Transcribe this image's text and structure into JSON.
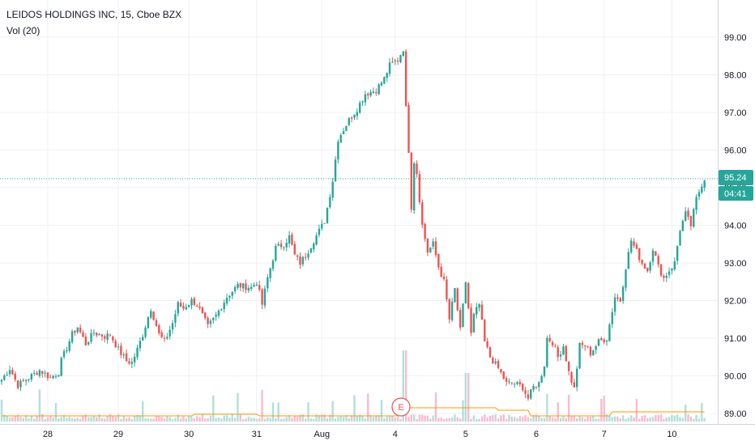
{
  "header": {
    "symbol_line": "LEIDOS HOLDINGS INC, 15, Cboe BZX",
    "volume_label": "Vol (20)"
  },
  "price_tag": {
    "value": "95.24",
    "countdown": "04:41"
  },
  "earnings_marker": "E",
  "colors": {
    "up": "#26a69a",
    "down": "#ef5350",
    "up_volume": "#b2dfdb",
    "down_volume": "#f8bbd0",
    "volume_ma": "#ff9800",
    "grid": "#eef0f3",
    "axis_text": "#131722",
    "price_line": "#26a69a"
  },
  "chart_data": {
    "type": "candlestick",
    "title": "LEIDOS HOLDINGS INC, 15, Cboe BZX",
    "interval": "15",
    "exchange": "Cboe BZX",
    "last_price": 95.24,
    "y_axis": {
      "position": "right",
      "range": [
        88.9,
        99.9
      ],
      "ticks": [
        "99.00",
        "98.00",
        "97.00",
        "96.00",
        "95.00",
        "94.00",
        "93.00",
        "92.00",
        "91.00",
        "90.00",
        "89.00"
      ]
    },
    "x_axis": {
      "ticks": [
        "28",
        "29",
        "30",
        "31",
        "Aug",
        "4",
        "5",
        "6",
        "7",
        "10"
      ]
    },
    "grid": true,
    "volume_indicator": "Vol (20)",
    "price_anchors": [
      [
        0,
        89.9
      ],
      [
        3,
        90.2
      ],
      [
        6,
        89.75
      ],
      [
        10,
        89.95
      ],
      [
        14,
        90.15
      ],
      [
        18,
        89.95
      ],
      [
        21,
        90.1
      ],
      [
        22,
        90.4
      ],
      [
        26,
        91.1
      ],
      [
        28,
        91.3
      ],
      [
        31,
        90.85
      ],
      [
        34,
        91.15
      ],
      [
        38,
        91.05
      ],
      [
        40,
        91.1
      ],
      [
        43,
        90.7
      ],
      [
        46,
        90.4
      ],
      [
        48,
        90.35
      ],
      [
        50,
        90.7
      ],
      [
        52,
        91.1
      ],
      [
        55,
        91.8
      ],
      [
        58,
        91.1
      ],
      [
        60,
        90.9
      ],
      [
        63,
        91.4
      ],
      [
        65,
        91.9
      ],
      [
        67,
        91.8
      ],
      [
        70,
        92.0
      ],
      [
        72,
        91.9
      ],
      [
        76,
        91.3
      ],
      [
        79,
        91.6
      ],
      [
        83,
        92.1
      ],
      [
        87,
        92.4
      ],
      [
        92,
        92.35
      ],
      [
        94,
        92.5
      ],
      [
        96,
        91.9
      ],
      [
        98,
        92.6
      ],
      [
        101,
        93.4
      ],
      [
        104,
        93.5
      ],
      [
        106,
        93.7
      ],
      [
        108,
        93.2
      ],
      [
        110,
        93.0
      ],
      [
        112,
        93.2
      ],
      [
        115,
        93.6
      ],
      [
        119,
        94.1
      ],
      [
        122,
        95.2
      ],
      [
        124,
        96.3
      ],
      [
        128,
        96.8
      ],
      [
        131,
        97.1
      ],
      [
        134,
        97.5
      ],
      [
        138,
        97.6
      ],
      [
        141,
        97.9
      ],
      [
        143,
        98.25
      ],
      [
        146,
        98.4
      ],
      [
        148,
        98.7
      ],
      [
        149,
        97.1
      ],
      [
        150,
        96.0
      ],
      [
        151,
        94.5
      ],
      [
        152,
        95.7
      ],
      [
        153,
        95.4
      ],
      [
        155,
        94.0
      ],
      [
        157,
        93.3
      ],
      [
        159,
        93.5
      ],
      [
        161,
        92.9
      ],
      [
        163,
        92.5
      ],
      [
        165,
        91.5
      ],
      [
        167,
        92.3
      ],
      [
        169,
        91.2
      ],
      [
        171,
        92.5
      ],
      [
        173,
        91.1
      ],
      [
        174,
        91.6
      ],
      [
        176,
        91.9
      ],
      [
        178,
        90.9
      ],
      [
        180,
        90.5
      ],
      [
        183,
        90.2
      ],
      [
        186,
        89.8
      ],
      [
        189,
        89.8
      ],
      [
        192,
        89.7
      ],
      [
        194,
        89.4
      ],
      [
        196,
        89.7
      ],
      [
        198,
        89.8
      ],
      [
        200,
        90.3
      ],
      [
        201,
        91.0
      ],
      [
        203,
        90.9
      ],
      [
        205,
        90.5
      ],
      [
        207,
        90.8
      ],
      [
        209,
        90.1
      ],
      [
        211,
        89.65
      ],
      [
        213,
        90.8
      ],
      [
        215,
        90.8
      ],
      [
        217,
        90.6
      ],
      [
        220,
        90.9
      ],
      [
        223,
        91.0
      ],
      [
        226,
        92.1
      ],
      [
        228,
        92.0
      ],
      [
        230,
        92.9
      ],
      [
        232,
        93.6
      ],
      [
        234,
        93.3
      ],
      [
        236,
        93.0
      ],
      [
        238,
        92.8
      ],
      [
        240,
        93.4
      ],
      [
        242,
        92.9
      ],
      [
        244,
        92.6
      ],
      [
        246,
        92.8
      ],
      [
        248,
        93.0
      ],
      [
        250,
        93.9
      ],
      [
        252,
        94.3
      ],
      [
        254,
        94.0
      ],
      [
        256,
        94.7
      ],
      [
        258,
        95.1
      ],
      [
        259,
        95.24
      ]
    ],
    "volume_ma_level": "approximately flat, rising after Aug 4 earnings"
  }
}
